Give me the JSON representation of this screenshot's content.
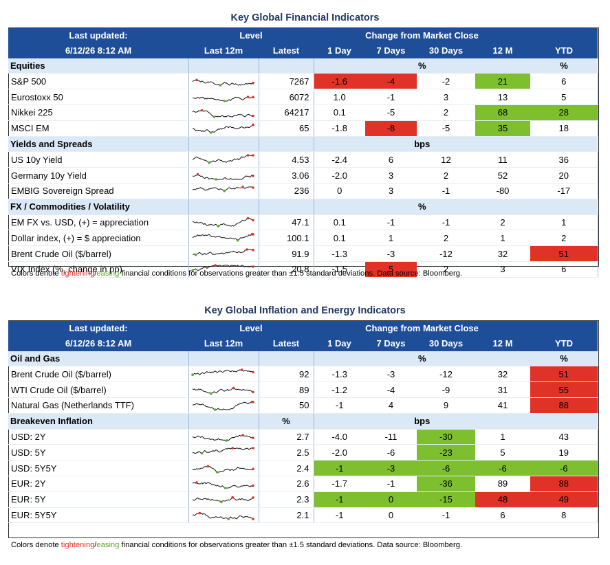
{
  "table1": {
    "title": "Key Global Financial Indicators",
    "header": {
      "last_updated": "Last updated:",
      "date": "6/12/26 8:12 AM",
      "level": "Level",
      "change": "Change from Market Close",
      "last12m": "Last 12m",
      "latest": "Latest",
      "d1": "1 Day",
      "d7": "7 Days",
      "d30": "30 Days",
      "m12": "12 M",
      "ytd": "YTD"
    },
    "sections": [
      {
        "name": "Equities",
        "unit": "%",
        "ytd_unit": "%",
        "rows": [
          {
            "label": "S&P 500",
            "latest": "7267",
            "d1": "-1.6",
            "d7": "-4",
            "d30": "-2",
            "m12": "21",
            "ytd": "6",
            "colors": {
              "d1": "red",
              "d7": "red",
              "m12": "green"
            }
          },
          {
            "label": "Eurostoxx 50",
            "latest": "6072",
            "d1": "1.0",
            "d7": "-1",
            "d30": "3",
            "m12": "13",
            "ytd": "5",
            "colors": {}
          },
          {
            "label": "Nikkei 225",
            "latest": "64217",
            "d1": "0.1",
            "d7": "-5",
            "d30": "2",
            "m12": "68",
            "ytd": "28",
            "colors": {
              "m12": "green",
              "ytd": "green"
            }
          },
          {
            "label": "MSCI EM",
            "latest": "65",
            "d1": "-1.8",
            "d7": "-8",
            "d30": "-5",
            "m12": "35",
            "ytd": "18",
            "colors": {
              "d7": "red",
              "m12": "green"
            }
          }
        ]
      },
      {
        "name": "Yields and Spreads",
        "unit": "bps",
        "ytd_unit": "",
        "rows": [
          {
            "label": "US 10y Yield",
            "latest": "4.53",
            "d1": "-2.4",
            "d7": "6",
            "d30": "12",
            "m12": "11",
            "ytd": "36",
            "colors": {}
          },
          {
            "label": "Germany 10y Yield",
            "latest": "3.06",
            "d1": "-2.0",
            "d7": "3",
            "d30": "2",
            "m12": "52",
            "ytd": "20",
            "colors": {}
          },
          {
            "label": "EMBIG Sovereign Spread",
            "latest": "236",
            "d1": "0",
            "d7": "3",
            "d30": "-1",
            "m12": "-80",
            "ytd": "-17",
            "colors": {}
          }
        ]
      },
      {
        "name": "FX / Commodities / Volatility",
        "unit": "%",
        "ytd_unit": "",
        "rows": [
          {
            "label": "EM FX vs. USD, (+) = appreciation",
            "latest": "47.1",
            "d1": "0.1",
            "d7": "-1",
            "d30": "-1",
            "m12": "2",
            "ytd": "1",
            "colors": {}
          },
          {
            "label": "Dollar index, (+) = $ appreciation",
            "latest": "100.1",
            "d1": "0.1",
            "d7": "1",
            "d30": "2",
            "m12": "1",
            "ytd": "2",
            "colors": {}
          },
          {
            "label": "Brent Crude Oil ($/barrel)",
            "latest": "91.9",
            "d1": "-1.3",
            "d7": "-3",
            "d30": "-12",
            "m12": "32",
            "ytd": "51",
            "colors": {
              "ytd": "red"
            }
          },
          {
            "label": "VIX Index (%, change in pp)",
            "latest": "20.8",
            "d1": "-1.5",
            "d7": "5",
            "d30": "2",
            "m12": "3",
            "ytd": "6",
            "colors": {
              "d7": "red"
            }
          }
        ]
      }
    ],
    "note": {
      "pre": "Colors denote ",
      "tightening": "tightening",
      "slash": "/",
      "easing": "easing",
      "post": " financial conditions for observations greater than ±1.5 standard deviations. Data source: Bloomberg."
    }
  },
  "table2": {
    "title": "Key Global Inflation and Energy Indicators",
    "header": {
      "last_updated": "Last updated:",
      "date": "6/12/26 8:12 AM",
      "level": "Level",
      "change": "Change from Market Close",
      "last12m": "Last 12m",
      "latest": "Latest",
      "d1": "1 Day",
      "d7": "7 Days",
      "d30": "30 Days",
      "m12": "12 M",
      "ytd": "YTD"
    },
    "sections": [
      {
        "name": "Oil and Gas",
        "unit": "%",
        "ytd_unit": "%",
        "level_unit": "",
        "rows": [
          {
            "label": "Brent Crude Oil ($/barrel)",
            "latest": "92",
            "d1": "-1.3",
            "d7": "-3",
            "d30": "-12",
            "m12": "32",
            "ytd": "51",
            "colors": {
              "ytd": "red"
            }
          },
          {
            "label": "WTI Crude Oil ($/barrel)",
            "latest": "89",
            "d1": "-1.2",
            "d7": "-4",
            "d30": "-9",
            "m12": "31",
            "ytd": "55",
            "colors": {
              "ytd": "red"
            }
          },
          {
            "label": "Natural Gas (Netherlands TTF)",
            "latest": "50",
            "d1": "-1",
            "d7": "4",
            "d30": "9",
            "m12": "41",
            "ytd": "88",
            "colors": {
              "ytd": "red"
            }
          }
        ]
      },
      {
        "name": "Breakeven Inflation",
        "unit": "bps",
        "ytd_unit": "",
        "level_unit": "%",
        "rows": [
          {
            "label": "USD: 2Y",
            "latest": "2.7",
            "d1": "-4.0",
            "d7": "-11",
            "d30": "-30",
            "m12": "1",
            "ytd": "43",
            "colors": {
              "d30": "green"
            }
          },
          {
            "label": "USD: 5Y",
            "latest": "2.5",
            "d1": "-2.0",
            "d7": "-6",
            "d30": "-23",
            "m12": "5",
            "ytd": "19",
            "colors": {
              "d30": "green"
            }
          },
          {
            "label": "USD: 5Y5Y",
            "latest": "2.4",
            "d1": "-1",
            "d7": "-3",
            "d30": "-6",
            "m12": "-6",
            "ytd": "-6",
            "colors": {
              "d1": "green",
              "d7": "green",
              "d30": "green",
              "m12": "green",
              "ytd": "green"
            }
          },
          {
            "label": "EUR: 2Y",
            "latest": "2.6",
            "d1": "-1.7",
            "d7": "-1",
            "d30": "-36",
            "m12": "89",
            "ytd": "88",
            "colors": {
              "d30": "green",
              "ytd": "red"
            }
          },
          {
            "label": "EUR: 5Y",
            "latest": "2.3",
            "d1": "-1",
            "d7": "0",
            "d30": "-15",
            "m12": "48",
            "ytd": "49",
            "colors": {
              "d1": "green",
              "d7": "green",
              "d30": "green",
              "m12": "red",
              "ytd": "red"
            }
          },
          {
            "label": "EUR: 5Y5Y",
            "latest": "2.1",
            "d1": "-1",
            "d7": "0",
            "d30": "-1",
            "m12": "6",
            "ytd": "8",
            "colors": {}
          }
        ]
      }
    ],
    "note": {
      "pre": "Colors denote ",
      "tightening": "tightening",
      "slash": "/",
      "easing": "easing",
      "post": " financial conditions for observations greater than ±1.5 standard deviations. Data source: Bloomberg."
    }
  }
}
